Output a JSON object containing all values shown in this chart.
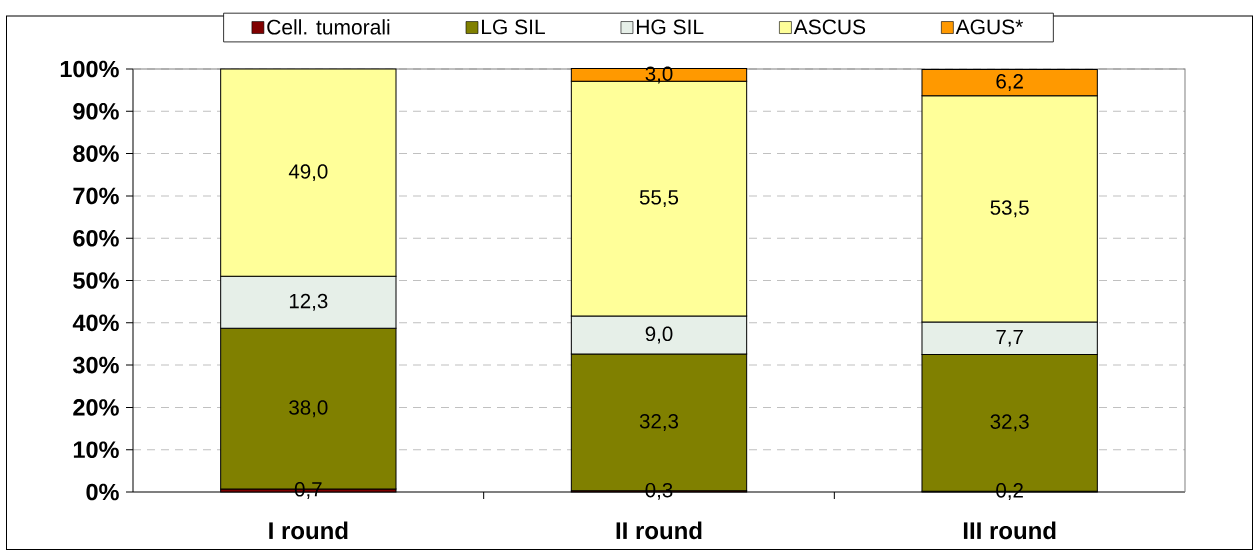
{
  "chart_data": {
    "type": "bar",
    "stacked": true,
    "categories": [
      "I round",
      "II round",
      "III round"
    ],
    "series": [
      {
        "name": "Cell. tumorali",
        "color": "#800000",
        "values": [
          0.7,
          0.3,
          0.2
        ],
        "value_labels": [
          "0,7",
          "0,3",
          "0,2"
        ]
      },
      {
        "name": "LG SIL",
        "color": "#808000",
        "values": [
          38.0,
          32.3,
          32.3
        ],
        "value_labels": [
          "38,0",
          "32,3",
          "32,3"
        ]
      },
      {
        "name": "HG SIL",
        "color": "#e6efe8",
        "values": [
          12.3,
          9.0,
          7.7
        ],
        "value_labels": [
          "12,3",
          "9,0",
          "7,7"
        ]
      },
      {
        "name": "ASCUS",
        "color": "#ffff99",
        "values": [
          49.0,
          55.5,
          53.5
        ],
        "value_labels": [
          "49,0",
          "55,5",
          "53,5"
        ]
      },
      {
        "name": "AGUS*",
        "color": "#ff9900",
        "values": [
          null,
          3.0,
          6.2
        ],
        "value_labels": [
          null,
          "3,0",
          "6,2"
        ]
      }
    ],
    "ylim": [
      0,
      100
    ],
    "yticks": [
      {
        "value": 0,
        "label": "0%"
      },
      {
        "value": 10,
        "label": "10%"
      },
      {
        "value": 20,
        "label": "20%"
      },
      {
        "value": 30,
        "label": "30%"
      },
      {
        "value": 40,
        "label": "40%"
      },
      {
        "value": 50,
        "label": "50%"
      },
      {
        "value": 60,
        "label": "60%"
      },
      {
        "value": 70,
        "label": "70%"
      },
      {
        "value": 80,
        "label": "80%"
      },
      {
        "value": 90,
        "label": "90%"
      },
      {
        "value": 100,
        "label": "100%"
      }
    ],
    "grid": "y",
    "legend": "top"
  }
}
